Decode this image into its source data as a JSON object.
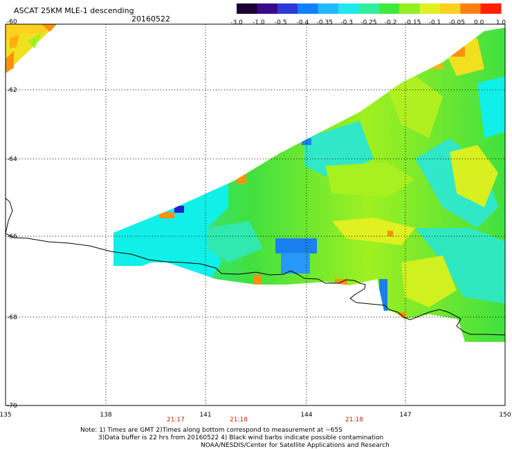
{
  "header": {
    "title": "ASCAT 25KM MLE-1 descending",
    "date": "20160522"
  },
  "colorbar": {
    "labels": [
      "-3.0",
      "-1.0",
      "-0.5",
      "-0.4",
      "-0.35",
      "-0.3",
      "-0.25",
      "-0.2",
      "-0.15",
      "-0.1",
      "-0.05",
      "0.0",
      "1.0"
    ],
    "colors": [
      "#1a0033",
      "#3a0a8a",
      "#2a3ad8",
      "#1080ff",
      "#20b8ff",
      "#20e8ee",
      "#30f0a0",
      "#40e840",
      "#90f020",
      "#e0f020",
      "#ffd020",
      "#ff8010",
      "#ff2000"
    ]
  },
  "map": {
    "lat_labels": [
      "-60",
      "-62",
      "-64",
      "-66",
      "-68",
      "-70"
    ],
    "lon_labels": [
      "135",
      "138",
      "141",
      "144",
      "147",
      "150"
    ],
    "time_labels": [
      "21:17",
      "21:18",
      "21:18"
    ],
    "data_palette": {
      "green": "#40e030",
      "lime": "#a0f020",
      "yellow": "#f0f020",
      "cyan": "#10f0e8",
      "aqua": "#20e0c0",
      "blue": "#1a80f0",
      "deep_blue": "#2020d0",
      "orange": "#ff9010"
    }
  },
  "notes": {
    "line1": "Note: 1) Times are GMT 2)Times along bottom correspond to measurement at ~65S",
    "line2": "3)Data buffer is 22 hrs from 20160522 4) Black wind barbs indicate possible contamination",
    "line3": "NOAA/NESDIS/Center for Satellite Applications and Research"
  }
}
